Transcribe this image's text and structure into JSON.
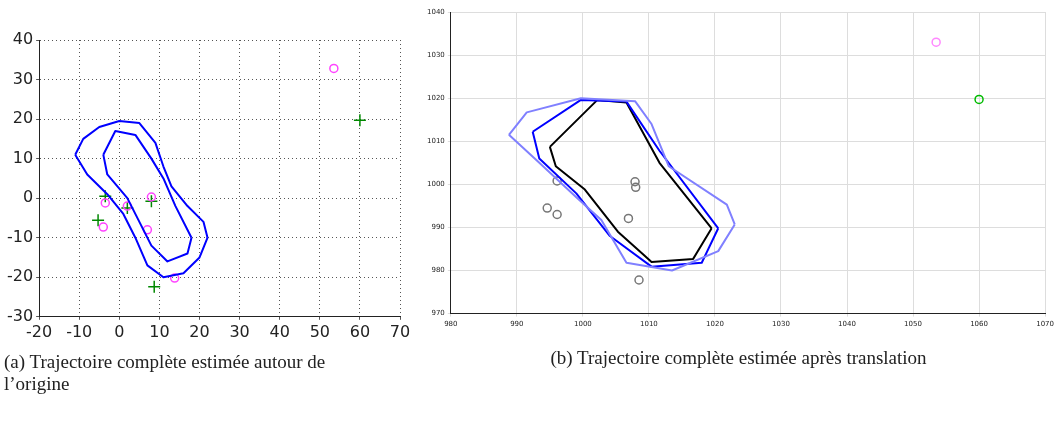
{
  "chart_data": [
    {
      "type": "scatter",
      "title": "(a) Trajectoire complète estimée autour de l’origine",
      "xlim": [
        -20,
        70
      ],
      "xticks": [
        -20,
        -10,
        0,
        10,
        20,
        30,
        40,
        50,
        60,
        70
      ],
      "ylim": [
        -30,
        40
      ],
      "yticks": [
        -30,
        -20,
        -10,
        0,
        10,
        20,
        30,
        40
      ],
      "grid": true,
      "series": [
        {
          "type": "line",
          "color": "#0000ff",
          "x": [
            -11,
            -9,
            -5,
            0,
            5,
            9,
            11,
            13,
            17,
            21,
            22
          ],
          "values": [
            11,
            15,
            18,
            19.5,
            19,
            14,
            8,
            3,
            -2,
            -6,
            -10
          ]
        },
        {
          "type": "line",
          "color": "#0000ff",
          "x": [
            -11,
            -8,
            -3,
            1,
            4,
            7,
            11,
            16,
            20,
            22
          ],
          "values": [
            11,
            6,
            1,
            -4,
            -10,
            -17,
            -20,
            -19,
            -15,
            -10
          ]
        },
        {
          "type": "line",
          "color": "#0000ff",
          "x": [
            -4,
            -1,
            4,
            8,
            11,
            14,
            18
          ],
          "values": [
            11,
            17,
            16,
            10,
            5,
            -2,
            -10
          ]
        },
        {
          "type": "line",
          "color": "#0000ff",
          "x": [
            -4,
            -3,
            2,
            5,
            8,
            12,
            17,
            18
          ],
          "values": [
            11,
            6,
            0,
            -6,
            -12,
            -16,
            -14,
            -10
          ]
        },
        {
          "type": "scatter",
          "marker": "circle",
          "color": "#ff44ff",
          "x": [
            53.5,
            8,
            -3.5,
            -4,
            7,
            13.8,
            2
          ],
          "values": [
            32.8,
            0.3,
            -1.2,
            -7.3,
            -8,
            -20.2,
            -2
          ]
        },
        {
          "type": "scatter",
          "marker": "cross",
          "color": "#008800",
          "x": [
            60,
            -3.5,
            8,
            -5.3,
            8.7,
            2
          ],
          "values": [
            19.7,
            0.5,
            -0.8,
            -5.6,
            -22.4,
            -2.5
          ]
        }
      ]
    },
    {
      "type": "scatter",
      "title": "(b) Trajectoire complète estimée après translation",
      "xlim": [
        980,
        1070
      ],
      "xticks": [
        980,
        990,
        1000,
        1010,
        1020,
        1030,
        1040,
        1050,
        1060,
        1070
      ],
      "ylim": [
        970,
        1040
      ],
      "yticks": [
        970,
        980,
        990,
        1000,
        1010,
        1020,
        1030,
        1040
      ],
      "grid": true,
      "series": [
        {
          "type": "line",
          "color": "#8080ff",
          "x": [
            988.8,
            991.5,
            999.7,
            1007.9,
            1010.4,
            1013,
            1021.8,
            1023
          ],
          "values": [
            1011.5,
            1016.7,
            1020,
            1019.3,
            1014,
            1004.2,
            995.3,
            990.7
          ]
        },
        {
          "type": "line",
          "color": "#8080ff",
          "x": [
            988.8,
            993.4,
            999,
            1002.8,
            1006.6,
            1013.5,
            1020.5,
            1023
          ],
          "values": [
            1011.5,
            1005,
            997,
            991.7,
            981.8,
            980,
            984.5,
            990.7
          ]
        },
        {
          "type": "line",
          "color": "#0000ff",
          "x": [
            992.4,
            999.7,
            1006.6,
            1011.6,
            1020.5
          ],
          "values": [
            1012.2,
            1019.6,
            1019.2,
            1007.8,
            989.8
          ]
        },
        {
          "type": "line",
          "color": "#0000ff",
          "x": [
            992.4,
            993.4,
            999,
            1004.1,
            1010.4,
            1018,
            1020.5
          ],
          "values": [
            1012.2,
            1006,
            997.9,
            988,
            980.9,
            981.8,
            989.8
          ]
        },
        {
          "type": "line",
          "color": "#000000",
          "x": [
            995,
            1002.2,
            1006.6,
            1011.6,
            1019.5
          ],
          "values": [
            1008.7,
            1019.6,
            1019,
            1005,
            989.8
          ]
        },
        {
          "type": "line",
          "color": "#000000",
          "x": [
            995,
            995.9,
            1000.3,
            1005.3,
            1010.4,
            1016.7,
            1019.5
          ],
          "values": [
            1008.7,
            1004.2,
            998.8,
            989,
            982,
            982.7,
            989.8
          ]
        },
        {
          "type": "scatter",
          "marker": "circle",
          "color": "#ff88ff",
          "x": [
            1053.5
          ],
          "values": [
            1033
          ]
        },
        {
          "type": "scatter",
          "marker": "circle",
          "color": "#00bb00",
          "x": [
            1060
          ],
          "values": [
            1019.7
          ]
        },
        {
          "type": "scatter",
          "marker": "circle",
          "color": "#777777",
          "x": [
            994.6,
            996.1,
            996.1,
            1007.9,
            1008,
            1008.5,
            1006.9
          ],
          "values": [
            994.5,
            993,
            1000.8,
            1000.6,
            999.3,
            977.8,
            992.1
          ]
        }
      ]
    }
  ]
}
